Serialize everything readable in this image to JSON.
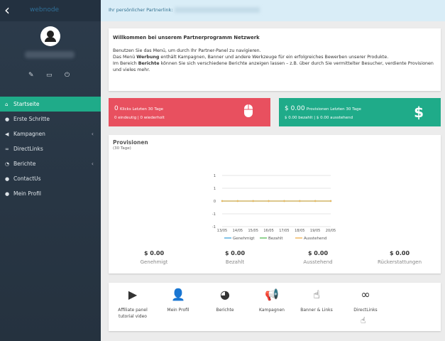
{
  "sidebar": {
    "logo": "webnode",
    "items": [
      {
        "label": "Startseite",
        "icon": "home-icon",
        "active": true
      },
      {
        "label": "Erste Schritte",
        "icon": "user-icon"
      },
      {
        "label": "Kampagnen",
        "icon": "megaphone-icon",
        "chevron": true
      },
      {
        "label": "DirectLinks",
        "icon": "link-icon"
      },
      {
        "label": "Berichte",
        "icon": "chart-icon",
        "chevron": true
      },
      {
        "label": "ContactUs",
        "icon": "contact-icon"
      },
      {
        "label": "Mein Profil",
        "icon": "profile-icon"
      }
    ]
  },
  "topbar": {
    "label": "Ihr persönlicher Partnerlink:"
  },
  "welcome": {
    "title": "Willkommen bei unserem Partnerprogramm Netzwerk",
    "line1": "Benutzen Sie das Menü, um durch Ihr Partner-Panel zu navigieren.",
    "line2a": "Das Menü ",
    "line2b": "Werbung",
    "line2c": " enthält Kampagnen, Banner und andere Werkzeuge für ein erfolgreiches Bewerben unserer Produkte.",
    "line3a": "Im Bereich ",
    "line3b": "Berichte",
    "line3c": " können Sie sich verschiedene Berichte anzeigen lassen – z.B. über durch Sie vermittelter Besucher, verdiente Provisionen und vieles mehr."
  },
  "clicks": {
    "value": "0",
    "label": "Klicks Letzten 30 Tage",
    "sub": "0 eindeutig | 0 wiederholt",
    "color": "#e8505f"
  },
  "commissions": {
    "value": "$ 0.00",
    "label": "Provisionen Letzten 30 Tage",
    "sub": "$ 0.00 bezahlt | $ 0.00 ausstehend",
    "color": "#1fab89"
  },
  "provisionen": {
    "title": "Provisionen",
    "subtitle": "(30 Tage)",
    "totals": [
      {
        "value": "$ 0.00",
        "label": "Genehmigt"
      },
      {
        "value": "$ 0.00",
        "label": "Bezahlt"
      },
      {
        "value": "$ 0.00",
        "label": "Ausstehend"
      },
      {
        "value": "$ 0.00",
        "label": "Rückerstattungen"
      }
    ]
  },
  "chart_data": {
    "type": "line",
    "categories": [
      "13/05",
      "14/05",
      "15/05",
      "16/05",
      "17/05",
      "18/05",
      "19/05",
      "20/05"
    ],
    "yticks": [
      "1",
      "1",
      "0",
      "-1",
      "-1"
    ],
    "ylim": [
      -1,
      1
    ],
    "legend": "bottom",
    "grid": true,
    "series": [
      {
        "name": "Genehmigt",
        "color": "#5bb0e0",
        "values": [
          0,
          0,
          0,
          0,
          0,
          0,
          0,
          0
        ]
      },
      {
        "name": "Bezahlt",
        "color": "#6cc36c",
        "values": [
          0,
          0,
          0,
          0,
          0,
          0,
          0,
          0
        ]
      },
      {
        "name": "Ausstehend",
        "color": "#f0b860",
        "values": [
          0,
          0,
          0,
          0,
          0,
          0,
          0,
          0
        ]
      }
    ]
  },
  "shortcuts": [
    {
      "label": "Affiliate panel tutorial video",
      "icon": "video-icon"
    },
    {
      "label": "Mein Profil",
      "icon": "user-icon"
    },
    {
      "label": "Berichte",
      "icon": "pie-chart-icon"
    },
    {
      "label": "Kampagnen",
      "icon": "megaphone-icon"
    },
    {
      "label": "Banner & Links",
      "icon": "pointer-icon"
    },
    {
      "label": "DirectLinks",
      "icon": "link-icon"
    }
  ]
}
